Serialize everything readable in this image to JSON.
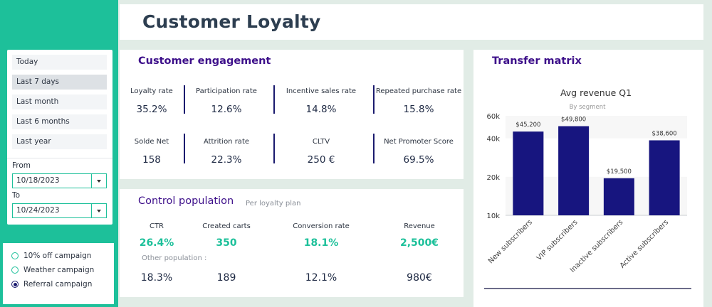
{
  "title": "Customer Loyalty",
  "colors": {
    "accent": "#1dc09a",
    "navy": "#1a1a6e",
    "purple": "#3d0f8a",
    "bar": "#17157f"
  },
  "date_ranges": [
    "Today",
    "Last 7 days",
    "Last month",
    "Last 6 months",
    "Last year"
  ],
  "active_range": "Last 7 days",
  "from": {
    "label": "From",
    "value": "10/18/2023"
  },
  "to": {
    "label": "To",
    "value": "10/24/2023"
  },
  "campaigns": [
    {
      "label": "10% off campaign",
      "checked": false
    },
    {
      "label": "Weather campaign",
      "checked": false
    },
    {
      "label": "Referral campaign",
      "checked": true
    }
  ],
  "engagement": {
    "title": "Customer engagement",
    "metrics": [
      {
        "label": "Loyalty rate",
        "value": "35.2%"
      },
      {
        "label": "Participation rate",
        "value": "12.6%"
      },
      {
        "label": "Incentive sales rate",
        "value": "14.8%"
      },
      {
        "label": "Repeated purchase rate",
        "value": "15.8%"
      },
      {
        "label": "Solde Net",
        "value": "158"
      },
      {
        "label": "Attrition rate",
        "value": "22.3%"
      },
      {
        "label": "CLTV",
        "value": "250 €"
      },
      {
        "label": "Net Promoter Score",
        "value": "69.5%"
      }
    ]
  },
  "control": {
    "title": "Control population",
    "subtitle": "Per loyalty plan",
    "metrics": [
      {
        "label": "CTR",
        "value": "26.4%"
      },
      {
        "label": "Created carts",
        "value": "350"
      },
      {
        "label": "Conversion rate",
        "value": "18.1%"
      },
      {
        "label": "Revenue",
        "value": "2,500€"
      }
    ],
    "other_label": "Other population :",
    "other_values": [
      "18.3%",
      "189",
      "12.1%",
      "980€"
    ]
  },
  "transfer": {
    "title": "Transfer matrix",
    "chart_data": {
      "type": "bar",
      "title": "Avg revenue Q1",
      "subtitle": "By segment",
      "categories": [
        "New subscribers",
        "VIP subscribers",
        "Inactive subscribers",
        "Active subscribers"
      ],
      "values": [
        45200,
        49800,
        19500,
        38600
      ],
      "value_labels": [
        "$45,200",
        "$49,800",
        "$19,500",
        "$38,600"
      ],
      "y_scale": "log",
      "ylim": [
        10000,
        60000
      ],
      "y_ticks": [
        10000,
        20000,
        40000,
        60000
      ],
      "y_tick_labels": [
        "10k",
        "20k",
        "40k",
        "60k"
      ],
      "grid": "alternating bands"
    }
  }
}
